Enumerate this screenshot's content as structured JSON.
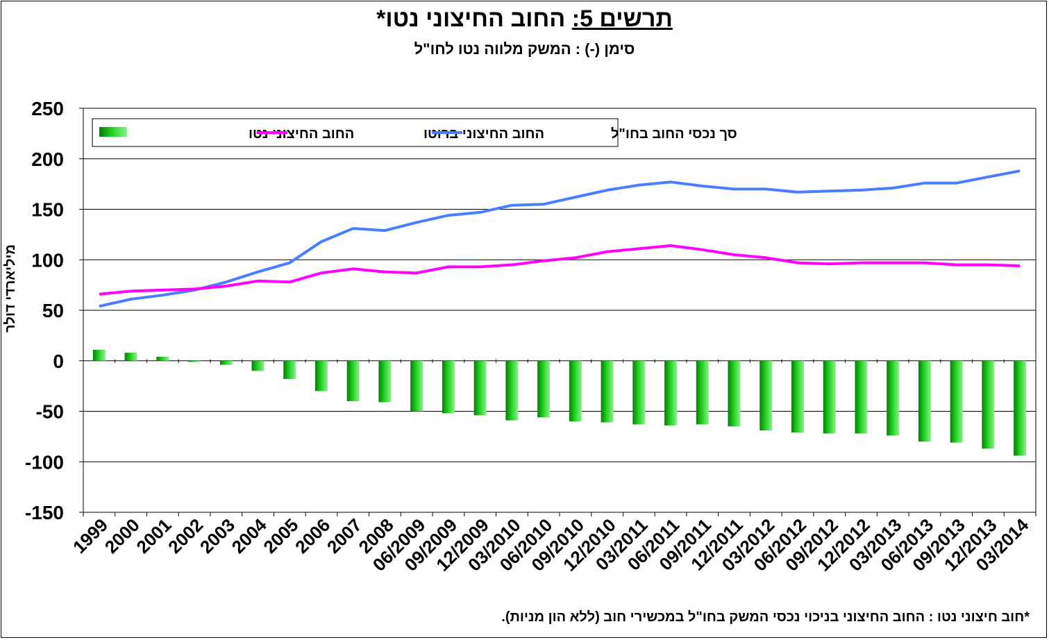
{
  "title": {
    "prefix": "תרשים 5:",
    "text": "החוב החיצוני נטו*"
  },
  "subtitle": "סימן (-) : המשק מלווה נטו לחו\"ל",
  "footnote": "*חוב חיצוני נטו : החוב החיצוני בניכוי נכסי המשק בחו\"ל במכשירי חוב (ללא הון מניות).",
  "chart_data": {
    "type": "bar",
    "ylabel": "מיליארדי דולר",
    "ylim": [
      -150,
      250
    ],
    "yticks": [
      250,
      200,
      150,
      100,
      50,
      0,
      -50,
      -100,
      -150
    ],
    "grid": true,
    "legend_position": "top-left",
    "categories": [
      "1999",
      "2000",
      "2001",
      "2002",
      "2003",
      "2004",
      "2005",
      "2006",
      "2007",
      "2008",
      "06/2009",
      "09/2009",
      "12/2009",
      "03/2010",
      "06/2010",
      "09/2010",
      "12/2010",
      "03/2011",
      "06/2011",
      "09/2011",
      "12/2011",
      "03/2012",
      "06/2012",
      "09/2012",
      "12/2012",
      "03/2013",
      "06/2013",
      "09/2013",
      "12/2013",
      "03/2014"
    ],
    "series": [
      {
        "name": "סך נכסי החוב בחו\"ל",
        "type": "line",
        "color": "#4a7dff",
        "values": [
          54,
          61,
          65,
          70,
          78,
          88,
          97,
          118,
          131,
          129,
          137,
          144,
          147,
          154,
          155,
          162,
          169,
          174,
          177,
          173,
          170,
          170,
          167,
          168,
          169,
          171,
          176,
          176,
          182,
          188
        ]
      },
      {
        "name": "החוב החיצוני ברוטו",
        "type": "line",
        "color": "#ff00ff",
        "values": [
          66,
          69,
          70,
          71,
          74,
          79,
          78,
          87,
          91,
          88,
          87,
          93,
          93,
          95,
          99,
          102,
          108,
          111,
          114,
          110,
          105,
          102,
          97,
          96,
          97,
          97,
          97,
          95,
          95,
          94
        ]
      },
      {
        "name": "החוב החיצוני נטו",
        "type": "bar",
        "color": "#1fc61f",
        "values": [
          11,
          8,
          4,
          -1,
          -4,
          -10,
          -18,
          -30,
          -40,
          -41,
          -50,
          -52,
          -54,
          -59,
          -56,
          -60,
          -61,
          -63,
          -64,
          -63,
          -65,
          -69,
          -71,
          -72,
          -72,
          -74,
          -80,
          -81,
          -87,
          -94
        ]
      }
    ]
  }
}
